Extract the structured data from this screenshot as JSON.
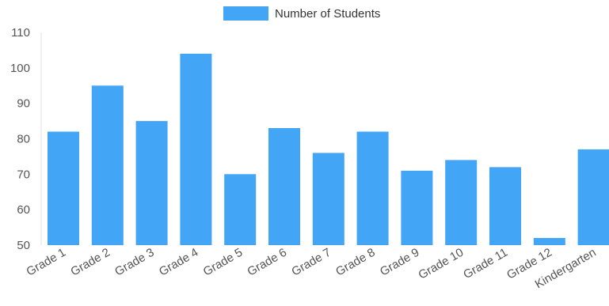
{
  "chart_data": {
    "type": "bar",
    "categories": [
      "Grade 1",
      "Grade 2",
      "Grade 3",
      "Grade 4",
      "Grade 5",
      "Grade 6",
      "Grade 7",
      "Grade 8",
      "Grade 9",
      "Grade 10",
      "Grade 11",
      "Grade 12",
      "Kindergarten"
    ],
    "series": [
      {
        "name": "Number of Students",
        "values": [
          82,
          95,
          85,
          104,
          70,
          83,
          76,
          82,
          71,
          74,
          72,
          52,
          77
        ]
      }
    ],
    "title": "",
    "xlabel": "",
    "ylabel": "",
    "ylim": [
      50,
      110
    ],
    "yticks": [
      50,
      60,
      70,
      80,
      90,
      100,
      110
    ],
    "grid": false,
    "legend_position": "top-center",
    "colors": {
      "bar": "#42a5f5",
      "axis": "#e0e0e0",
      "text": "#555555"
    }
  }
}
